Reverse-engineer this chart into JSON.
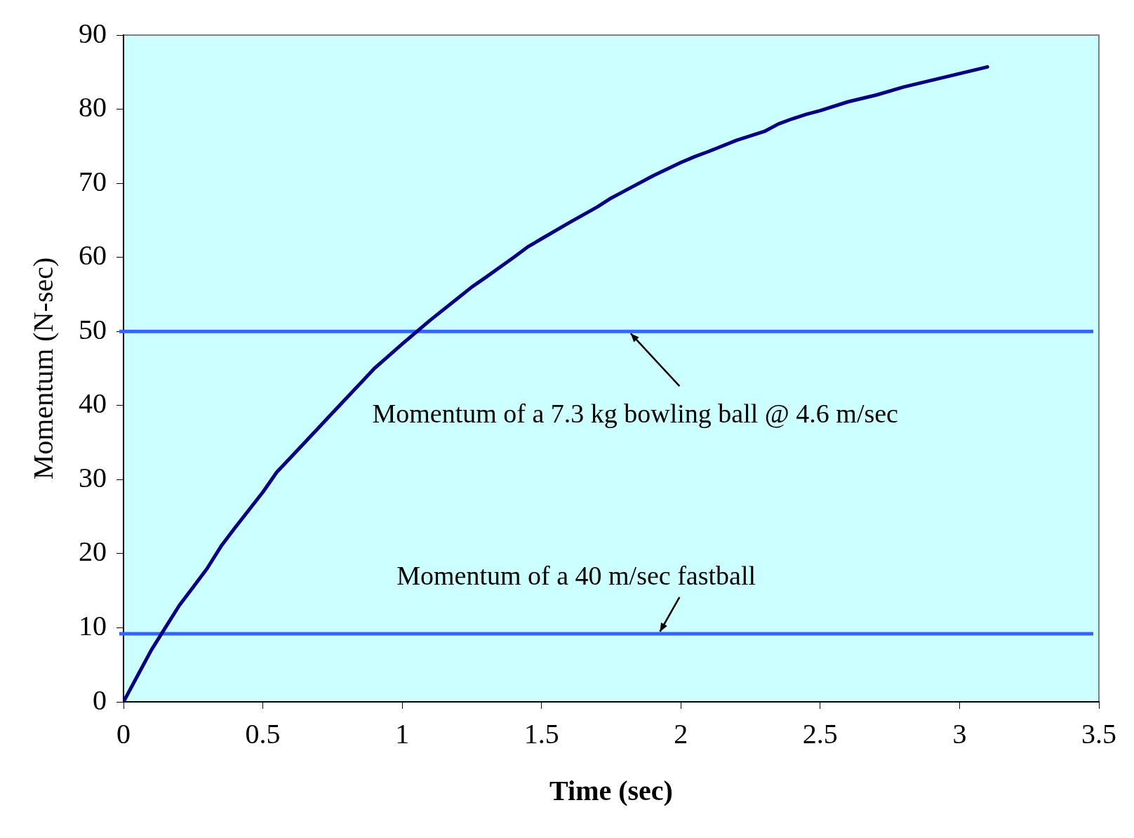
{
  "chart_data": {
    "type": "line",
    "xlabel": "Time (sec)",
    "ylabel": "Momentum (N-sec)",
    "xlim": [
      0,
      3.5
    ],
    "xticks": [
      0,
      0.5,
      1,
      1.5,
      2,
      2.5,
      3,
      3.5
    ],
    "ylim": [
      0,
      90
    ],
    "yticks": [
      0,
      10,
      20,
      30,
      40,
      50,
      60,
      70,
      80,
      90
    ],
    "x": [
      0,
      0.05,
      0.1,
      0.15,
      0.2,
      0.25,
      0.3,
      0.35,
      0.4,
      0.5,
      0.55,
      0.6,
      0.7,
      0.75,
      0.8,
      0.9,
      1,
      1.1,
      1.2,
      1.25,
      1.3,
      1.4,
      1.45,
      1.5,
      1.6,
      1.7,
      1.75,
      1.8,
      1.9,
      2,
      2.05,
      2.1,
      2.2,
      2.3,
      2.35,
      2.4,
      2.45,
      2.5,
      2.6,
      2.7,
      2.8,
      2.9,
      3,
      3.1
    ],
    "series": [
      {
        "color": "#000080",
        "values": [
          0,
          3.5,
          7,
          10,
          13,
          15.5,
          18,
          21,
          23.5,
          28.3,
          31,
          33,
          37,
          39,
          41,
          45,
          48.3,
          51.5,
          54.5,
          56,
          57.3,
          60,
          61.4,
          62.5,
          64.7,
          66.8,
          68,
          69,
          71,
          72.8,
          73.6,
          74.3,
          75.8,
          77,
          78,
          78.7,
          79.3,
          79.8,
          81,
          81.9,
          83,
          83.9,
          84.8,
          85.7
        ]
      }
    ],
    "ref_lines": [
      {
        "axis": "y",
        "value": 50,
        "label": "Momentum of a 7.3 kg bowling ball @ 4.6 m/sec",
        "color": "#3366ff"
      },
      {
        "axis": "y",
        "value": 9.2,
        "label": "Momentum of a 40 m/sec fastball",
        "color": "#3366ff"
      }
    ],
    "grid": false,
    "legend": false,
    "marker": "none",
    "line_style": "solid"
  }
}
